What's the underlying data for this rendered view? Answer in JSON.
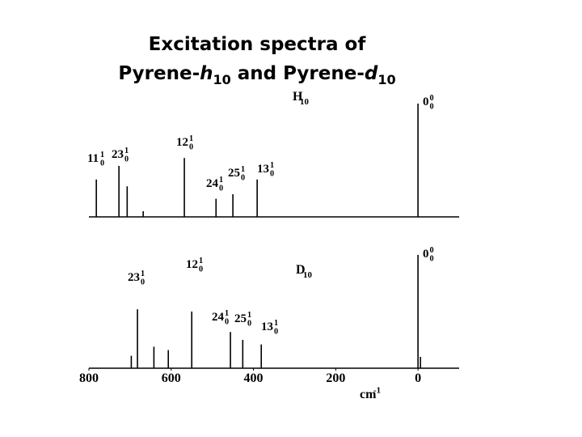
{
  "title": {
    "line1": "Excitation spectra of",
    "line2": [
      "Pyrene-",
      "h",
      "10",
      " and Pyrene-",
      "d",
      "10"
    ]
  },
  "chart_data": [
    {
      "type": "stem",
      "label": {
        "main": "H",
        "sub": "10"
      },
      "color": "#000000",
      "xlim": [
        800,
        -100
      ],
      "ylim": [
        0,
        1
      ],
      "x": [
        782,
        727,
        707,
        668,
        568,
        491,
        450,
        391,
        0
      ],
      "values": [
        0.33,
        0.45,
        0.27,
        0.05,
        0.52,
        0.16,
        0.2,
        0.33,
        1.0
      ],
      "annotations": [
        {
          "main": "11",
          "sup": "1",
          "sub": "0"
        },
        {
          "main": "23",
          "sup": "1",
          "sub": "0"
        },
        {
          "main": "12",
          "sup": "1",
          "sub": "0"
        },
        {
          "main": "24",
          "sup": "1",
          "sub": "0"
        },
        {
          "main": "25",
          "sup": "1",
          "sub": "0"
        },
        {
          "main": "13",
          "sup": "1",
          "sub": "0"
        },
        {
          "main": "0",
          "sup": "0",
          "sub": "0"
        }
      ]
    },
    {
      "type": "stem",
      "label": {
        "main": "D",
        "sub": "10"
      },
      "color": "#000000",
      "xlim": [
        800,
        -100
      ],
      "ylim": [
        0,
        1
      ],
      "x": [
        697,
        682,
        642,
        607,
        550,
        456,
        426,
        381,
        0,
        -6
      ],
      "values": [
        0.11,
        0.52,
        0.19,
        0.16,
        0.5,
        0.32,
        0.25,
        0.21,
        1.0,
        0.1
      ],
      "xticks": [
        800,
        600,
        400,
        200,
        0
      ],
      "xlabel": {
        "main": "cm",
        "sup": "-1"
      },
      "annotations": [
        {
          "main": "23",
          "sup": "1",
          "sub": "0"
        },
        {
          "main": "12",
          "sup": "1",
          "sub": "0"
        },
        {
          "main": "24",
          "sup": "1",
          "sub": "0"
        },
        {
          "main": "25",
          "sup": "1",
          "sub": "0"
        },
        {
          "main": "13",
          "sup": "1",
          "sub": "0"
        },
        {
          "main": "0",
          "sup": "0",
          "sub": "0"
        }
      ]
    }
  ]
}
